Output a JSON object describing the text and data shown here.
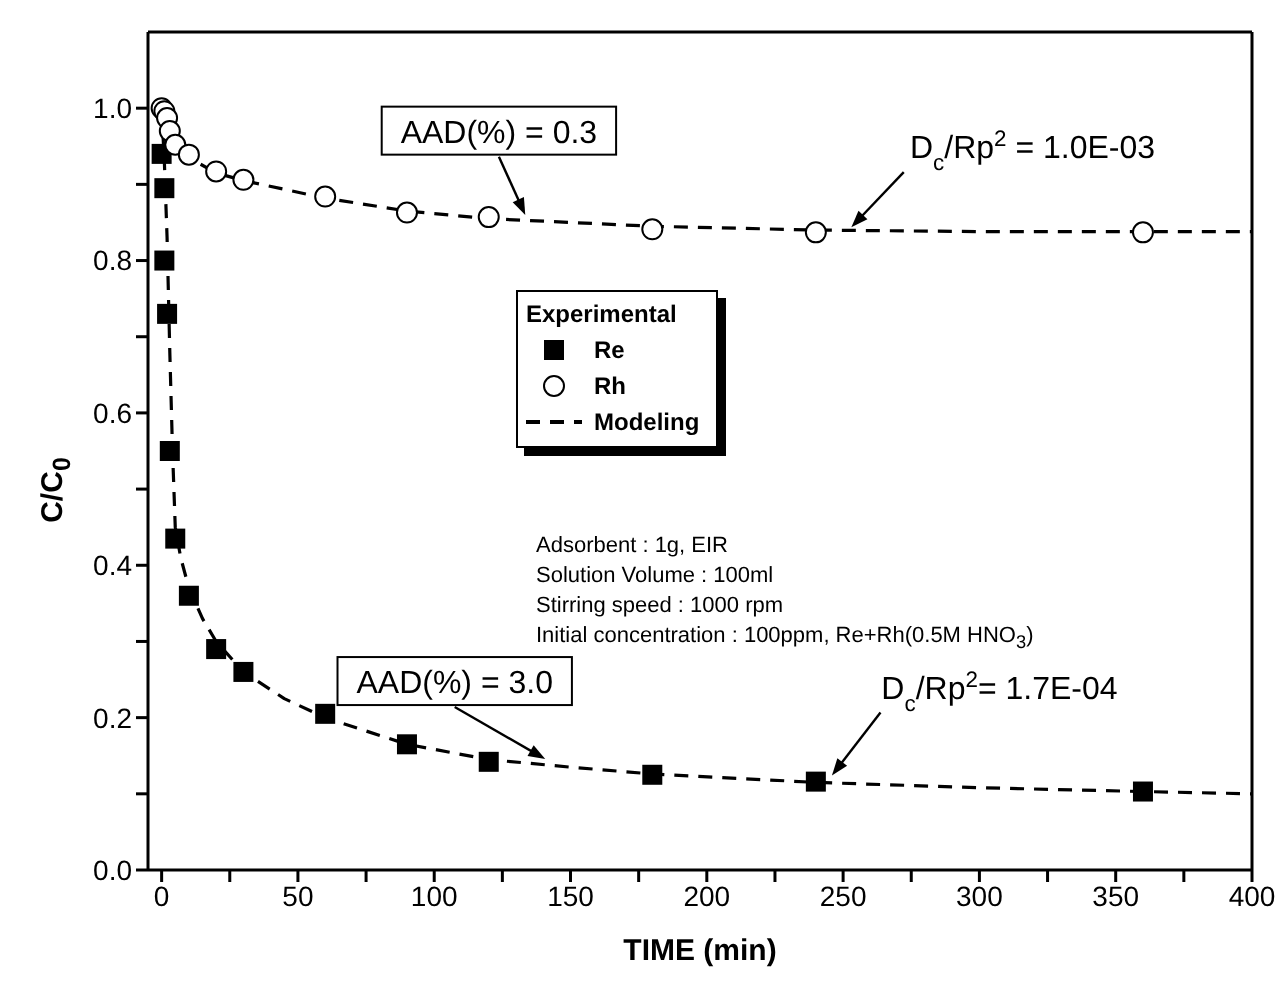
{
  "chart_data": {
    "type": "scatter",
    "xlabel": "TIME (min)",
    "ylabel": "C/C$_{0}$",
    "legend_title": "Experimental",
    "legend": "center",
    "xlim": [
      -5,
      400
    ],
    "xticks": [
      0,
      {
        "value": 25,
        "label": null
      },
      50,
      {
        "value": 75,
        "label": null
      },
      100,
      {
        "value": 125,
        "label": null
      },
      150,
      {
        "value": 175,
        "label": null
      },
      200,
      {
        "value": 225,
        "label": null
      },
      250,
      {
        "value": 275,
        "label": null
      },
      300,
      {
        "value": 325,
        "label": null
      },
      350,
      {
        "value": 375,
        "label": null
      },
      400
    ],
    "ylim": [
      0,
      1.1
    ],
    "yticks": [
      {
        "value": 0,
        "label": "0.0"
      },
      {
        "value": 0.1,
        "label": null
      },
      {
        "value": 0.2,
        "label": "0.2"
      },
      {
        "value": 0.3,
        "label": null
      },
      {
        "value": 0.4,
        "label": "0.4"
      },
      {
        "value": 0.5,
        "label": null
      },
      {
        "value": 0.6,
        "label": "0.6"
      },
      {
        "value": 0.7,
        "label": null
      },
      {
        "value": 0.8,
        "label": "0.8"
      },
      {
        "value": 0.9,
        "label": null
      },
      {
        "value": 1.0,
        "label": "1.0"
      }
    ],
    "series": [
      {
        "name": "Re",
        "marker": "square",
        "color": "#000000",
        "x": [
          0,
          1,
          1,
          2,
          3,
          5,
          10,
          20,
          30,
          60,
          90,
          120,
          180,
          240,
          360
        ],
        "values": [
          0.94,
          0.895,
          0.8,
          0.73,
          0.55,
          0.435,
          0.36,
          0.29,
          0.26,
          0.205,
          0.165,
          0.142,
          0.125,
          0.116,
          0.103
        ]
      },
      {
        "name": "Rh",
        "marker": "circle",
        "color": "#000000",
        "x": [
          0,
          1,
          2,
          3,
          5,
          10,
          20,
          30,
          60,
          90,
          120,
          180,
          240,
          360
        ],
        "values": [
          1.0,
          0.996,
          0.987,
          0.97,
          0.952,
          0.939,
          0.917,
          0.906,
          0.884,
          0.863,
          0.857,
          0.841,
          0.837,
          0.837
        ]
      },
      {
        "name": "Modeling",
        "type": "line",
        "line_style": "dashed",
        "marker": "none",
        "color": "#000000",
        "x": [
          0,
          1,
          2,
          3,
          4,
          5,
          7,
          10,
          15,
          20,
          30,
          45,
          60,
          90,
          120,
          150,
          180,
          240,
          300,
          360,
          400
        ],
        "values": [
          1.0,
          0.93,
          0.83,
          0.68,
          0.55,
          0.45,
          0.41,
          0.37,
          0.33,
          0.3,
          0.26,
          0.225,
          0.2,
          0.165,
          0.145,
          0.135,
          0.126,
          0.115,
          0.108,
          0.103,
          0.1
        ]
      },
      {
        "type": "line",
        "line_style": "dashed",
        "marker": "none",
        "color": "#000000",
        "x": [
          0,
          2,
          5,
          10,
          20,
          30,
          60,
          90,
          120,
          180,
          240,
          300,
          360,
          400
        ],
        "values": [
          1.0,
          0.97,
          0.95,
          0.935,
          0.915,
          0.905,
          0.882,
          0.865,
          0.855,
          0.845,
          0.84,
          0.838,
          0.838,
          0.838
        ]
      }
    ],
    "annotations": [
      {
        "text": "AAD(%) = 0.3",
        "x": 134,
        "y": 0.855
      },
      {
        "text": "D$_{c}$/Rp$^{2}$ = 1.0E-03",
        "x": 252,
        "y": 0.84
      },
      {
        "text": "AAD(%) = 3.0",
        "x": 142,
        "y": 0.143
      },
      {
        "text": "D$_{c}$/Rp$^{2}$= 1.7E-04",
        "x": 245,
        "y": 0.12
      },
      "Adsorbent : 1g,  EIR",
      "Solution Volume : 100ml",
      "Stirring speed : 1000 rpm",
      "Initial concentration : 100ppm, Re+Rh(0.5M HNO$_{3}$)"
    ]
  }
}
